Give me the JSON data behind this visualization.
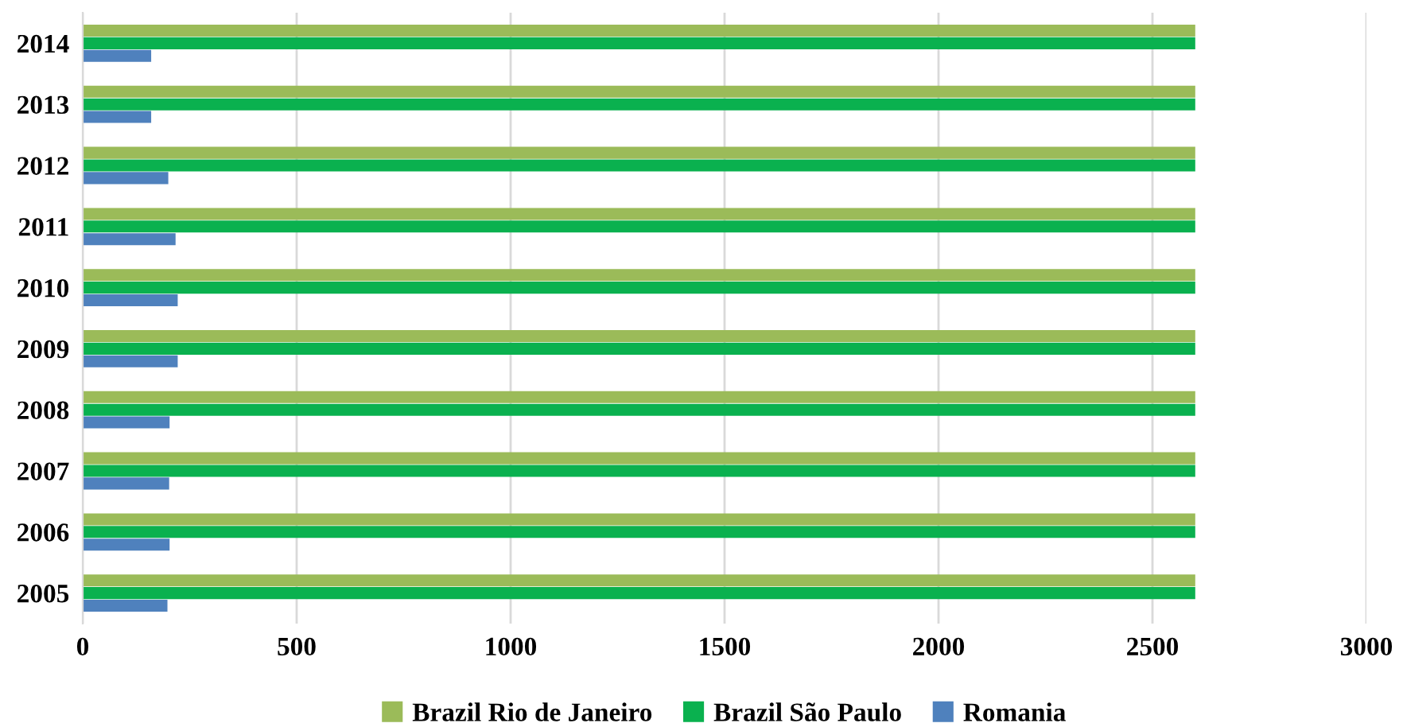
{
  "chart_data": {
    "type": "bar",
    "orientation": "horizontal",
    "categories": [
      "2014",
      "2013",
      "2012",
      "2011",
      "2010",
      "2009",
      "2008",
      "2007",
      "2006",
      "2005"
    ],
    "series": [
      {
        "name": "Brazil Rio de Janeiro",
        "color": "#9bbb59",
        "values": [
          2600,
          2600,
          2600,
          2600,
          2600,
          2600,
          2600,
          2600,
          2600,
          2600
        ]
      },
      {
        "name": "Brazil São Paulo",
        "color": "#0ab14f",
        "values": [
          2600,
          2600,
          2600,
          2600,
          2600,
          2600,
          2600,
          2600,
          2600,
          2600
        ]
      },
      {
        "name": "Romania",
        "color": "#4f81bd",
        "values": [
          160,
          160,
          200,
          217,
          222,
          222,
          203,
          202,
          203,
          198
        ]
      }
    ],
    "xlim": [
      0,
      3000
    ],
    "xticks": [
      0,
      500,
      1000,
      1500,
      2000,
      2500,
      3000
    ],
    "grid": "x",
    "legend": "bottom"
  }
}
